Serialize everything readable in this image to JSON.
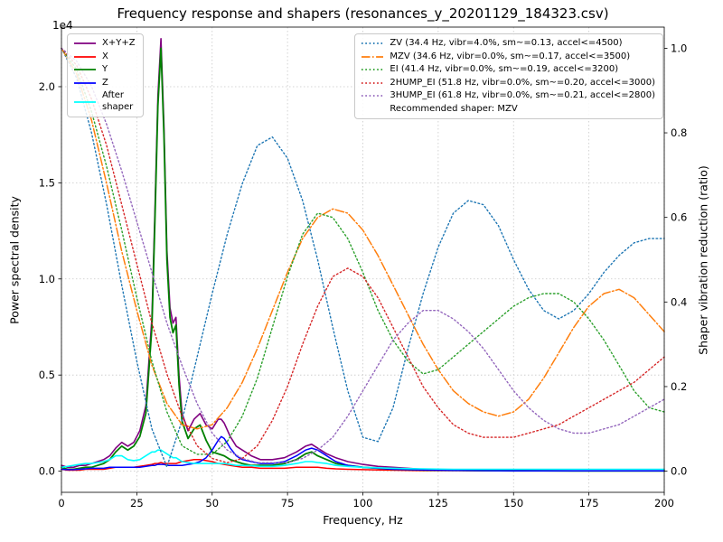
{
  "figure": {
    "title": "Frequency response and shapers (resonances_y_20201129_184323.csv)",
    "xlabel": "Frequency, Hz",
    "ylabel_left": "Power spectral density",
    "ylabel_right": "Shaper vibration reduction (ratio)",
    "offset_label": "1e4"
  },
  "chart_data": {
    "type": "line",
    "title": "Frequency response and shapers (resonances_y_20201129_184323.csv)",
    "grid": true,
    "x_axis": {
      "label": "Frequency, Hz",
      "range": [
        0,
        200
      ],
      "tick_values": [
        0,
        25,
        50,
        75,
        100,
        125,
        150,
        175,
        200
      ]
    },
    "y_axis_left": {
      "label": "Power spectral density",
      "offset_text": "1e4",
      "units_multiplier": 10000,
      "limits": [
        -0.11,
        2.31
      ],
      "tick_values": [
        0,
        0.5,
        1.0,
        1.5,
        2.0
      ],
      "tick_labels": [
        "0.0",
        "0.5",
        "1.0",
        "1.5",
        "2.0"
      ]
    },
    "y_axis_right": {
      "label": "Shaper vibration reduction (ratio)",
      "limits": [
        -0.05,
        1.05
      ],
      "tick_values": [
        0,
        0.2,
        0.4,
        0.6,
        0.8,
        1.0
      ],
      "tick_labels": [
        "0.0",
        "0.2",
        "0.4",
        "0.6",
        "0.8",
        "1.0"
      ]
    },
    "legend_left_position": "upper left",
    "legend_right_position": "upper right",
    "recommended_shaper": "MZV",
    "recommended_label": "Recommended shaper: MZV",
    "psd_series": [
      {
        "name": "X+Y+Z",
        "label": "X+Y+Z",
        "color": "#800080",
        "style": "solid",
        "width": 1.6,
        "x": [
          0,
          2,
          4,
          6,
          8,
          10,
          12,
          14,
          16,
          18,
          20,
          22,
          24,
          26,
          28,
          30,
          31,
          32,
          33,
          34,
          35,
          36,
          37,
          38,
          39,
          40,
          42,
          44,
          46,
          48,
          50,
          52,
          53,
          54,
          56,
          58,
          60,
          63,
          66,
          70,
          74,
          78,
          81,
          83,
          85,
          88,
          91,
          95,
          100,
          105,
          110,
          115,
          120,
          130,
          140,
          150,
          160,
          170,
          180,
          190,
          200
        ],
        "values": [
          0.03,
          0.02,
          0.02,
          0.03,
          0.03,
          0.04,
          0.05,
          0.06,
          0.08,
          0.12,
          0.15,
          0.13,
          0.15,
          0.21,
          0.34,
          0.8,
          1.35,
          1.95,
          2.25,
          1.8,
          1.15,
          0.85,
          0.77,
          0.8,
          0.5,
          0.3,
          0.21,
          0.27,
          0.3,
          0.24,
          0.22,
          0.27,
          0.27,
          0.25,
          0.18,
          0.13,
          0.11,
          0.08,
          0.06,
          0.06,
          0.07,
          0.1,
          0.13,
          0.14,
          0.12,
          0.09,
          0.07,
          0.05,
          0.035,
          0.025,
          0.02,
          0.015,
          0.01,
          0.007,
          0.005,
          0.004,
          0.003,
          0.002,
          0.002,
          0.002,
          0.002
        ]
      },
      {
        "name": "X",
        "label": "X",
        "color": "#ff0000",
        "style": "solid",
        "width": 1.5,
        "x": [
          0,
          2,
          4,
          6,
          8,
          10,
          12,
          14,
          16,
          18,
          20,
          22,
          24,
          26,
          28,
          30,
          31,
          32,
          33,
          34,
          35,
          36,
          37,
          38,
          39,
          40,
          42,
          44,
          46,
          48,
          50,
          52,
          53,
          54,
          56,
          58,
          60,
          63,
          66,
          70,
          74,
          78,
          81,
          83,
          85,
          88,
          91,
          95,
          100,
          105,
          110,
          115,
          120,
          130,
          140,
          150,
          160,
          170,
          180,
          190,
          200
        ],
        "values": [
          0.01,
          0.005,
          0.005,
          0.005,
          0.01,
          0.01,
          0.01,
          0.01,
          0.015,
          0.02,
          0.02,
          0.02,
          0.02,
          0.025,
          0.03,
          0.035,
          0.04,
          0.04,
          0.045,
          0.04,
          0.04,
          0.04,
          0.04,
          0.04,
          0.045,
          0.05,
          0.055,
          0.06,
          0.06,
          0.055,
          0.05,
          0.04,
          0.038,
          0.035,
          0.03,
          0.025,
          0.02,
          0.02,
          0.015,
          0.015,
          0.015,
          0.02,
          0.02,
          0.02,
          0.02,
          0.015,
          0.012,
          0.01,
          0.008,
          0.006,
          0.005,
          0.004,
          0.003,
          0.003,
          0.002,
          0.002,
          0.002,
          0.002,
          0.002,
          0.002,
          0.002
        ]
      },
      {
        "name": "Y",
        "label": "Y",
        "color": "#008000",
        "style": "solid",
        "width": 1.8,
        "x": [
          0,
          2,
          4,
          6,
          8,
          10,
          12,
          14,
          16,
          18,
          20,
          22,
          24,
          26,
          28,
          30,
          31,
          32,
          33,
          34,
          35,
          36,
          37,
          38,
          39,
          40,
          42,
          44,
          46,
          48,
          50,
          52,
          53,
          54,
          56,
          58,
          60,
          63,
          66,
          70,
          74,
          78,
          81,
          83,
          85,
          88,
          91,
          95,
          100,
          105,
          110,
          115,
          120,
          130,
          140,
          150,
          160,
          170,
          180,
          190,
          200
        ],
        "values": [
          0.02,
          0.01,
          0.01,
          0.015,
          0.02,
          0.02,
          0.03,
          0.04,
          0.06,
          0.1,
          0.13,
          0.11,
          0.13,
          0.18,
          0.3,
          0.75,
          1.3,
          1.9,
          2.2,
          1.75,
          1.1,
          0.8,
          0.72,
          0.76,
          0.45,
          0.26,
          0.17,
          0.22,
          0.24,
          0.16,
          0.1,
          0.09,
          0.085,
          0.08,
          0.06,
          0.05,
          0.04,
          0.03,
          0.03,
          0.03,
          0.04,
          0.06,
          0.09,
          0.1,
          0.08,
          0.06,
          0.04,
          0.03,
          0.02,
          0.015,
          0.01,
          0.008,
          0.006,
          0.004,
          0.003,
          0.002,
          0.002,
          0.001,
          0.001,
          0.001,
          0.001
        ]
      },
      {
        "name": "Z",
        "label": "Z",
        "color": "#0000ff",
        "style": "solid",
        "width": 1.5,
        "x": [
          0,
          2,
          4,
          6,
          8,
          10,
          12,
          14,
          16,
          18,
          20,
          22,
          24,
          26,
          28,
          30,
          31,
          32,
          33,
          34,
          35,
          36,
          37,
          38,
          39,
          40,
          42,
          44,
          46,
          48,
          50,
          52,
          53,
          54,
          56,
          58,
          60,
          63,
          66,
          70,
          74,
          78,
          81,
          83,
          85,
          88,
          91,
          95,
          100,
          105,
          110,
          115,
          120,
          130,
          140,
          150,
          160,
          170,
          180,
          190,
          200
        ],
        "values": [
          0.01,
          0.008,
          0.008,
          0.01,
          0.012,
          0.015,
          0.015,
          0.015,
          0.02,
          0.02,
          0.02,
          0.02,
          0.02,
          0.02,
          0.025,
          0.03,
          0.03,
          0.035,
          0.035,
          0.035,
          0.03,
          0.03,
          0.03,
          0.03,
          0.03,
          0.03,
          0.035,
          0.04,
          0.05,
          0.07,
          0.11,
          0.16,
          0.18,
          0.17,
          0.12,
          0.08,
          0.06,
          0.05,
          0.04,
          0.04,
          0.05,
          0.08,
          0.11,
          0.12,
          0.11,
          0.08,
          0.05,
          0.03,
          0.02,
          0.015,
          0.01,
          0.008,
          0.006,
          0.004,
          0.003,
          0.002,
          0.002,
          0.002,
          0.002,
          0.002,
          0.002
        ]
      },
      {
        "name": "After shaper",
        "label": "After\nshaper",
        "color": "#00ffff",
        "style": "solid",
        "width": 1.6,
        "x": [
          0,
          2,
          4,
          6,
          8,
          10,
          12,
          14,
          16,
          18,
          20,
          22,
          24,
          26,
          28,
          30,
          31,
          32,
          33,
          34,
          35,
          36,
          37,
          38,
          39,
          40,
          42,
          44,
          46,
          48,
          50,
          52,
          53,
          54,
          56,
          58,
          60,
          63,
          66,
          70,
          74,
          78,
          81,
          83,
          85,
          88,
          91,
          95,
          100,
          105,
          110,
          115,
          120,
          130,
          140,
          150,
          160,
          170,
          180,
          190,
          200
        ],
        "values": [
          0.02,
          0.025,
          0.03,
          0.035,
          0.04,
          0.04,
          0.045,
          0.05,
          0.06,
          0.08,
          0.08,
          0.06,
          0.055,
          0.06,
          0.08,
          0.1,
          0.1,
          0.11,
          0.11,
          0.1,
          0.09,
          0.08,
          0.07,
          0.07,
          0.06,
          0.05,
          0.045,
          0.04,
          0.04,
          0.04,
          0.04,
          0.04,
          0.04,
          0.04,
          0.035,
          0.03,
          0.03,
          0.028,
          0.025,
          0.025,
          0.03,
          0.04,
          0.05,
          0.05,
          0.045,
          0.04,
          0.03,
          0.025,
          0.02,
          0.018,
          0.015,
          0.013,
          0.012,
          0.01,
          0.01,
          0.01,
          0.01,
          0.01,
          0.01,
          0.01,
          0.01
        ]
      }
    ],
    "shaper_series": [
      {
        "name": "ZV",
        "label": "ZV (34.4 Hz, vibr=4.0%, sm~=0.13, accel<=4500)",
        "color": "#1f77b4",
        "style": "dotted",
        "width": 1.4,
        "x": [
          0,
          5,
          10,
          15,
          20,
          25,
          30,
          35,
          40,
          45,
          50,
          55,
          60,
          65,
          70,
          75,
          80,
          85,
          90,
          95,
          100,
          105,
          110,
          115,
          120,
          125,
          130,
          135,
          140,
          145,
          150,
          155,
          160,
          165,
          170,
          175,
          180,
          185,
          190,
          195,
          200
        ],
        "values": [
          1.0,
          0.93,
          0.8,
          0.63,
          0.44,
          0.26,
          0.1,
          0.01,
          0.12,
          0.27,
          0.42,
          0.56,
          0.68,
          0.77,
          0.79,
          0.74,
          0.64,
          0.5,
          0.34,
          0.19,
          0.08,
          0.07,
          0.15,
          0.29,
          0.42,
          0.53,
          0.61,
          0.64,
          0.63,
          0.58,
          0.5,
          0.43,
          0.38,
          0.36,
          0.38,
          0.42,
          0.47,
          0.51,
          0.54,
          0.55,
          0.55
        ]
      },
      {
        "name": "MZV",
        "label": "MZV (34.6 Hz, vibr=0.0%, sm~=0.17, accel<=3500)",
        "color": "#ff7f0e",
        "style": "dashdot",
        "width": 1.5,
        "x": [
          0,
          5,
          10,
          15,
          20,
          25,
          30,
          35,
          40,
          45,
          50,
          55,
          60,
          65,
          70,
          75,
          80,
          85,
          90,
          95,
          100,
          105,
          110,
          115,
          120,
          125,
          130,
          135,
          140,
          145,
          150,
          155,
          160,
          165,
          170,
          175,
          180,
          185,
          190,
          195,
          200
        ],
        "values": [
          1.0,
          0.94,
          0.83,
          0.68,
          0.52,
          0.38,
          0.25,
          0.16,
          0.11,
          0.1,
          0.11,
          0.15,
          0.21,
          0.29,
          0.38,
          0.47,
          0.55,
          0.6,
          0.62,
          0.61,
          0.57,
          0.51,
          0.44,
          0.37,
          0.3,
          0.24,
          0.19,
          0.16,
          0.14,
          0.13,
          0.14,
          0.17,
          0.22,
          0.28,
          0.34,
          0.39,
          0.42,
          0.43,
          0.41,
          0.37,
          0.33
        ]
      },
      {
        "name": "EI",
        "label": "EI (41.4 Hz, vibr=0.0%, sm~=0.19, accel<=3200)",
        "color": "#2ca02c",
        "style": "dotted",
        "width": 1.4,
        "x": [
          0,
          5,
          10,
          15,
          20,
          25,
          30,
          35,
          40,
          45,
          50,
          55,
          60,
          65,
          70,
          75,
          80,
          85,
          90,
          95,
          100,
          105,
          110,
          115,
          120,
          125,
          130,
          135,
          140,
          145,
          150,
          155,
          160,
          165,
          170,
          175,
          180,
          185,
          190,
          195,
          200
        ],
        "values": [
          1.0,
          0.95,
          0.85,
          0.72,
          0.57,
          0.41,
          0.26,
          0.14,
          0.06,
          0.04,
          0.04,
          0.07,
          0.13,
          0.22,
          0.34,
          0.46,
          0.56,
          0.61,
          0.6,
          0.55,
          0.47,
          0.38,
          0.31,
          0.26,
          0.23,
          0.24,
          0.27,
          0.3,
          0.33,
          0.36,
          0.39,
          0.41,
          0.42,
          0.42,
          0.4,
          0.36,
          0.31,
          0.25,
          0.19,
          0.15,
          0.14
        ]
      },
      {
        "name": "2HUMP_EI",
        "label": "2HUMP_EI (51.8 Hz, vibr=0.0%, sm~=0.20, accel<=3000)",
        "color": "#d62728",
        "style": "dotted",
        "width": 1.4,
        "x": [
          0,
          5,
          10,
          15,
          20,
          25,
          30,
          35,
          40,
          45,
          50,
          55,
          60,
          65,
          70,
          75,
          80,
          85,
          90,
          95,
          100,
          105,
          110,
          115,
          120,
          125,
          130,
          135,
          140,
          145,
          150,
          155,
          160,
          165,
          170,
          175,
          180,
          185,
          190,
          195,
          200
        ],
        "values": [
          1.0,
          0.96,
          0.88,
          0.77,
          0.63,
          0.49,
          0.35,
          0.23,
          0.13,
          0.06,
          0.03,
          0.02,
          0.03,
          0.06,
          0.12,
          0.2,
          0.3,
          0.39,
          0.46,
          0.48,
          0.46,
          0.41,
          0.34,
          0.27,
          0.2,
          0.15,
          0.11,
          0.09,
          0.08,
          0.08,
          0.08,
          0.09,
          0.1,
          0.11,
          0.13,
          0.15,
          0.17,
          0.19,
          0.21,
          0.24,
          0.27
        ]
      },
      {
        "name": "3HUMP_EI",
        "label": "3HUMP_EI (61.8 Hz, vibr=0.0%, sm~=0.21, accel<=2800)",
        "color": "#9467bd",
        "style": "dotted",
        "width": 1.4,
        "x": [
          0,
          5,
          10,
          15,
          20,
          25,
          30,
          35,
          40,
          45,
          50,
          55,
          60,
          65,
          70,
          75,
          80,
          85,
          90,
          95,
          100,
          105,
          110,
          115,
          120,
          125,
          130,
          135,
          140,
          145,
          150,
          155,
          160,
          165,
          170,
          175,
          180,
          185,
          190,
          195,
          200
        ],
        "values": [
          1.0,
          0.97,
          0.91,
          0.82,
          0.71,
          0.59,
          0.47,
          0.35,
          0.25,
          0.16,
          0.09,
          0.05,
          0.03,
          0.02,
          0.02,
          0.02,
          0.03,
          0.05,
          0.08,
          0.13,
          0.19,
          0.25,
          0.31,
          0.35,
          0.38,
          0.38,
          0.36,
          0.33,
          0.29,
          0.24,
          0.19,
          0.15,
          0.12,
          0.1,
          0.09,
          0.09,
          0.1,
          0.11,
          0.13,
          0.15,
          0.17
        ]
      }
    ]
  }
}
